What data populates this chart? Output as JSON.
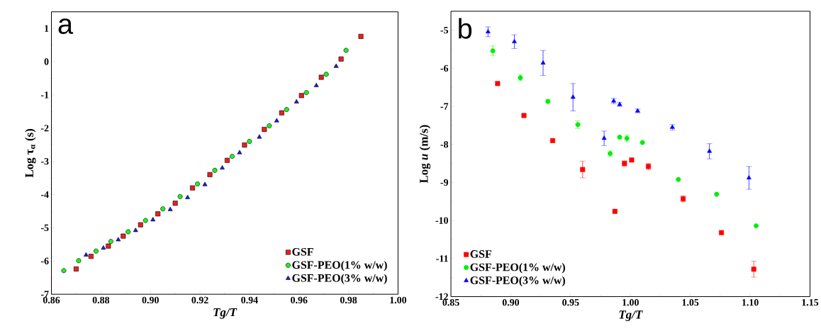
{
  "chart_data": [
    {
      "type": "scatter",
      "xlabel": "Tg/T",
      "ylabel": "Log τ$_{α}$ (s)",
      "annotations": [
        "a"
      ],
      "legend": "bottom right",
      "xlim": [
        0.86,
        1.0
      ],
      "ylim": [
        -7,
        1.5
      ],
      "xticks": [
        {
          "value": 0.86,
          "label": "0.86"
        },
        {
          "value": 0.88,
          "label": "0.88"
        },
        {
          "value": 0.9,
          "label": "0.90"
        },
        {
          "value": 0.92,
          "label": "0.92"
        },
        {
          "value": 0.94,
          "label": "0.94"
        },
        {
          "value": 0.96,
          "label": "0.96"
        },
        {
          "value": 0.98,
          "label": "0.98"
        },
        {
          "value": 1.0,
          "label": "1.00"
        }
      ],
      "yticks": [
        -7,
        -6,
        -5,
        -4,
        -3,
        -2,
        -1,
        0,
        1
      ],
      "series": [
        {
          "name": "GSF",
          "color": "#e8201e",
          "marker": "square",
          "x": [
            0.87,
            0.876,
            0.883,
            0.889,
            0.896,
            0.903,
            0.91,
            0.917,
            0.924,
            0.931,
            0.938,
            0.946,
            0.953,
            0.961,
            0.969,
            0.977,
            0.985
          ],
          "values": [
            -6.24,
            -5.86,
            -5.55,
            -5.25,
            -4.91,
            -4.58,
            -4.26,
            -3.8,
            -3.4,
            -2.97,
            -2.51,
            -2.04,
            -1.54,
            -1.02,
            -0.47,
            0.08,
            0.76
          ]
        },
        {
          "name": "GSF-PEO(1% w/w)",
          "color": "#22ee22",
          "marker": "circle",
          "x": [
            0.865,
            0.871,
            0.878,
            0.884,
            0.891,
            0.898,
            0.905,
            0.912,
            0.919,
            0.926,
            0.933,
            0.94,
            0.948,
            0.955,
            0.963,
            0.971,
            0.979
          ],
          "values": [
            -6.29,
            -5.99,
            -5.7,
            -5.41,
            -5.12,
            -4.78,
            -4.43,
            -4.06,
            -3.68,
            -3.27,
            -2.85,
            -2.4,
            -1.93,
            -1.44,
            -0.93,
            -0.38,
            0.34
          ]
        },
        {
          "name": "GSF-PEO(3% w/w)",
          "color": "#1a1aee",
          "marker": "triangle",
          "x": [
            0.874,
            0.881,
            0.887,
            0.894,
            0.901,
            0.908,
            0.915,
            0.922,
            0.929,
            0.936,
            0.944,
            0.951,
            0.959,
            0.967,
            0.975
          ],
          "values": [
            -5.82,
            -5.61,
            -5.36,
            -5.08,
            -4.76,
            -4.45,
            -4.09,
            -3.7,
            -3.2,
            -2.74,
            -2.27,
            -1.78,
            -1.21,
            -0.72,
            -0.14
          ]
        }
      ]
    },
    {
      "type": "scatter",
      "xlabel": "Tg/T",
      "ylabel": "Log *u* (m/s)",
      "annotations": [
        "b"
      ],
      "legend": "bottom left",
      "xlim": [
        0.85,
        1.15
      ],
      "ylim": [
        -12,
        -4.5
      ],
      "xticks": [
        {
          "value": 0.85,
          "label": "0.85"
        },
        {
          "value": 0.9,
          "label": "0.90"
        },
        {
          "value": 0.95,
          "label": "0.95"
        },
        {
          "value": 1.0,
          "label": "1.00"
        },
        {
          "value": 1.05,
          "label": "1.05"
        },
        {
          "value": 1.1,
          "label": "1.10"
        },
        {
          "value": 1.15,
          "label": "1.15"
        }
      ],
      "yticks": [
        -12,
        -11,
        -10,
        -9,
        -8,
        -7,
        -6,
        -5
      ],
      "series": [
        {
          "name": "GSF",
          "color": "#ff0000",
          "marker": "square",
          "x": [
            0.889,
            0.911,
            0.935,
            0.96,
            0.987,
            0.995,
            1.001,
            1.015,
            1.044,
            1.076,
            1.103
          ],
          "values": [
            -6.4,
            -7.24,
            -7.9,
            -8.66,
            -9.76,
            -8.5,
            -8.41,
            -8.58,
            -9.43,
            -10.32,
            -11.28
          ],
          "errors": [
            null,
            null,
            null,
            0.22,
            null,
            0.07,
            null,
            0.08,
            0.08,
            null,
            0.21
          ]
        },
        {
          "name": "GSF-PEO(1% w/w)",
          "color": "#00ee00",
          "marker": "circle",
          "x": [
            0.885,
            0.908,
            0.931,
            0.956,
            0.983,
            0.991,
            0.997,
            1.01,
            1.04,
            1.072,
            1.105
          ],
          "values": [
            -5.54,
            -6.25,
            -6.87,
            -7.48,
            -8.24,
            -7.81,
            -7.84,
            -7.95,
            -8.92,
            -9.31,
            -10.14
          ],
          "errors": [
            0.13,
            0.08,
            0.05,
            0.1,
            0.07,
            null,
            0.09,
            null,
            null,
            null,
            null
          ]
        },
        {
          "name": "GSF-PEO(3% w/w)",
          "color": "#0000ff",
          "marker": "triangle",
          "x": [
            0.881,
            0.903,
            0.927,
            0.952,
            0.978,
            0.986,
            0.991,
            1.006,
            1.035,
            1.066,
            1.099
          ],
          "values": [
            -5.04,
            -5.3,
            -5.86,
            -6.76,
            -7.84,
            -6.86,
            -6.95,
            -7.12,
            -7.55,
            -8.18,
            -8.88
          ],
          "errors": [
            0.13,
            0.18,
            0.33,
            0.36,
            0.19,
            0.07,
            0.05,
            0.05,
            0.07,
            0.2,
            0.3
          ]
        }
      ]
    }
  ]
}
